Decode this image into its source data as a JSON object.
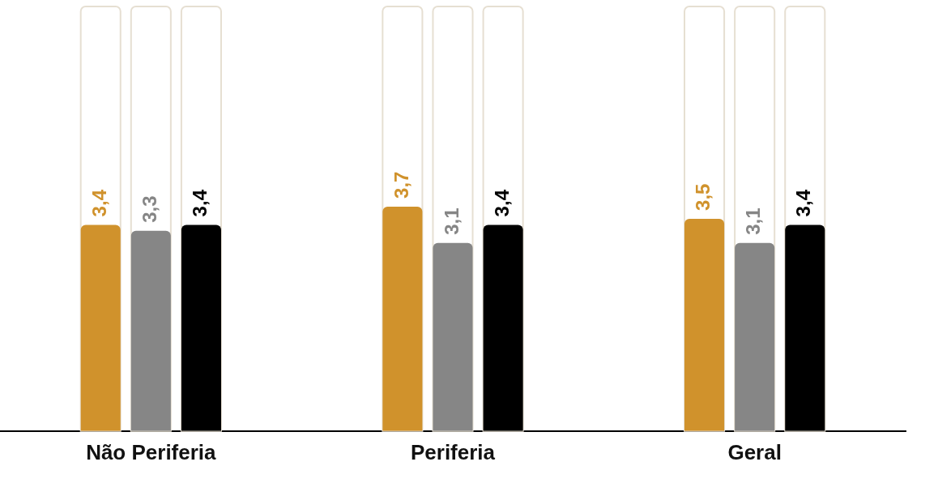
{
  "chart_data": {
    "type": "bar",
    "categories": [
      "Não Periferia",
      "Periferia",
      "Geral"
    ],
    "ylim": [
      0,
      7
    ],
    "series": [
      {
        "color": "#d0922c",
        "values": [
          3.4,
          3.7,
          3.5
        ],
        "value_labels": [
          "3,4",
          "3,7",
          "3,5"
        ]
      },
      {
        "color": "#868686",
        "values": [
          3.3,
          3.1,
          3.1
        ],
        "value_labels": [
          "3,3",
          "3,1",
          "3,1"
        ]
      },
      {
        "color": "#000000",
        "values": [
          3.4,
          3.4,
          3.4
        ],
        "value_labels": [
          "3,4",
          "3,4",
          "3,4"
        ]
      }
    ],
    "grid": false,
    "legend": false
  }
}
